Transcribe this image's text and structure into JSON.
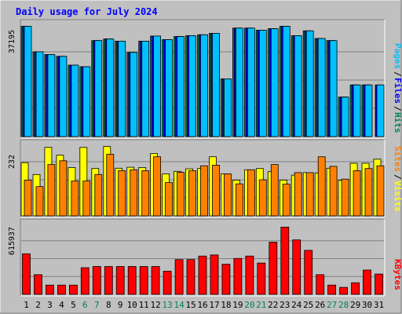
{
  "chart_data": {
    "type": "bar",
    "title": "Daily usage for July 2024",
    "categories": [
      "1",
      "2",
      "3",
      "4",
      "5",
      "6",
      "7",
      "8",
      "9",
      "10",
      "11",
      "12",
      "13",
      "14",
      "15",
      "16",
      "17",
      "18",
      "19",
      "20",
      "21",
      "22",
      "23",
      "24",
      "25",
      "26",
      "27",
      "28",
      "29",
      "30",
      "31"
    ],
    "weekend_days": [
      6,
      7,
      13,
      14,
      20,
      21,
      27,
      28
    ],
    "colors": {
      "hits": "#00805c",
      "files": "#0000ff",
      "pages": "#00c0ff",
      "visits": "#ffff00",
      "sites": "#ff8000",
      "kbytes": "#ff0000",
      "title": "#0000ff",
      "weekday": "#000000",
      "weekend": "#00805c"
    },
    "panels": [
      {
        "id": "hits-files-pages",
        "ymax_label": "37195",
        "ylim": [
          0,
          37195
        ],
        "legend": [
          {
            "text": "Pages",
            "color": "#00c0ff"
          },
          {
            "text": "/",
            "color": "#000000"
          },
          {
            "text": "Files",
            "color": "#0000ff"
          },
          {
            "text": "/",
            "color": "#000000"
          },
          {
            "text": "Hits",
            "color": "#00805c"
          }
        ],
        "series": [
          {
            "name": "Hits",
            "color": "#00805c",
            "values": [
              36300,
              27900,
              27000,
              26400,
              23500,
              23000,
              31600,
              32100,
              31400,
              27700,
              31400,
              33100,
              31900,
              32900,
              33200,
              33500,
              34000,
              19000,
              35700,
              35700,
              35000,
              35500,
              36300,
              33200,
              34800,
              32300,
              31600,
              13000,
              17000,
              17000,
              0
            ]
          },
          {
            "name": "Files",
            "color": "#0000ff",
            "values": [
              36300,
              27900,
              27000,
              26400,
              23500,
              23000,
              31600,
              32100,
              31400,
              27700,
              31400,
              33100,
              31900,
              32900,
              33200,
              33500,
              34000,
              19000,
              35700,
              35700,
              35000,
              35500,
              36300,
              33200,
              34800,
              32300,
              31600,
              13000,
              17000,
              17000,
              17000
            ]
          },
          {
            "name": "Pages",
            "color": "#00c0ff",
            "values": [
              36300,
              27900,
              27000,
              26400,
              23500,
              23000,
              31600,
              32100,
              31400,
              27700,
              31400,
              33100,
              31900,
              32900,
              33200,
              33500,
              34000,
              19000,
              35700,
              35700,
              35000,
              35500,
              36300,
              33200,
              34800,
              32300,
              31600,
              13000,
              17000,
              17000,
              17000
            ]
          }
        ]
      },
      {
        "id": "visits-sites",
        "ymax_label": "232",
        "ylim": [
          0,
          232
        ],
        "legend": [
          {
            "text": "Sites",
            "color": "#ff8000"
          },
          {
            "text": "/",
            "color": "#000000"
          },
          {
            "text": "Visits",
            "color": "#ffff00"
          }
        ],
        "series": [
          {
            "name": "Visits",
            "color": "#ffff00",
            "values": [
              171,
              133,
              220,
              195,
              155,
              220,
              152,
              223,
              153,
              156,
              155,
              200,
              135,
              143,
              151,
              152,
              190,
              135,
              115,
              148,
              152,
              142,
              115,
              131,
              139,
              138,
              153,
              114,
              169,
              169,
              182
            ]
          },
          {
            "name": "Sites",
            "color": "#ff8000",
            "values": [
              115,
              94,
              165,
              177,
              112,
              112,
              133,
              198,
              145,
              148,
              145,
              190,
              107,
              140,
              145,
              161,
              163,
              135,
              103,
              148,
              116,
              165,
              102,
              139,
              139,
              190,
              159,
              118,
              145,
              152,
              161
            ]
          }
        ]
      },
      {
        "id": "kbytes",
        "ymax_label": "615937",
        "ylim": [
          0,
          615937
        ],
        "legend": [
          {
            "text": "KBytes",
            "color": "#ff0000"
          }
        ],
        "series": [
          {
            "name": "KBytes",
            "color": "#ff0000",
            "values": [
              350000,
              170000,
              80000,
              80000,
              80000,
              230000,
              240000,
              240000,
              240000,
              240000,
              240000,
              240000,
              200000,
              300000,
              300000,
              330000,
              340000,
              260000,
              310000,
              330000,
              270000,
              450000,
              580000,
              470000,
              380000,
              170000,
              80000,
              60000,
              100000,
              210000,
              175000
            ]
          }
        ]
      }
    ]
  }
}
